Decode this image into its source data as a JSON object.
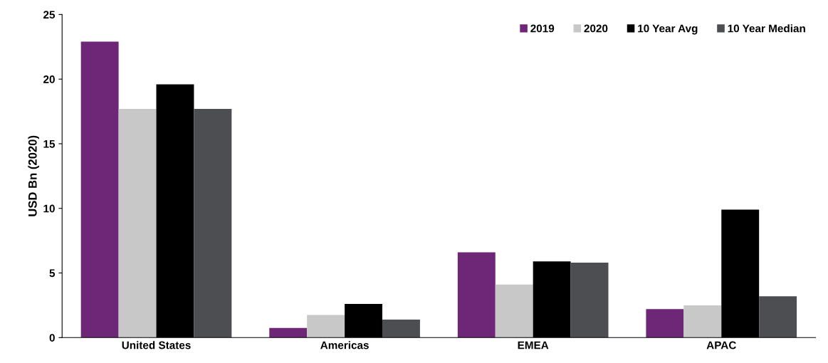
{
  "chart_data": {
    "type": "bar",
    "ylabel": "USD Bn (2020)",
    "categories": [
      "United States",
      "Americas",
      "EMEA",
      "APAC"
    ],
    "series": [
      {
        "name": "2019",
        "color": "#6e2677",
        "values": [
          22.9,
          0.75,
          6.6,
          2.2
        ]
      },
      {
        "name": "2020",
        "color": "#c8c8c8",
        "values": [
          17.7,
          1.75,
          4.1,
          2.5
        ]
      },
      {
        "name": "10 Year Avg",
        "color": "#000000",
        "values": [
          19.6,
          2.6,
          5.9,
          9.9
        ]
      },
      {
        "name": "10 Year Median",
        "color": "#4d4e52",
        "values": [
          17.7,
          1.4,
          5.8,
          3.2
        ]
      }
    ],
    "ylim": [
      0,
      25
    ],
    "yticks": [
      0,
      5,
      10,
      15,
      20,
      25
    ],
    "grid": false,
    "legend": "top right"
  }
}
